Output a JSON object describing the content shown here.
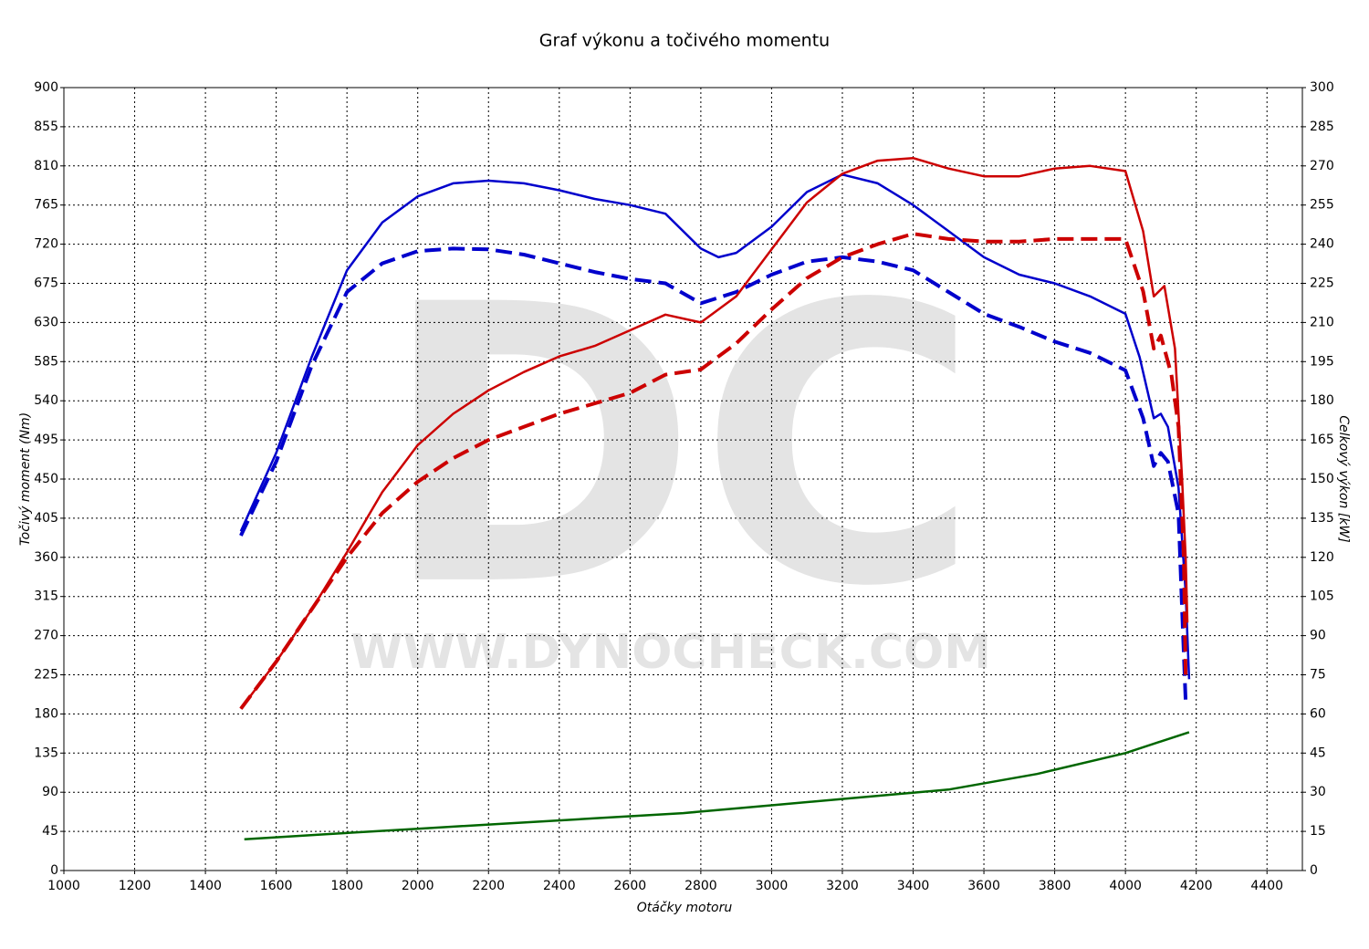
{
  "chart_data": {
    "type": "line",
    "title": "Graf výkonu a točivého momentu",
    "xlabel": "Otáčky motoru",
    "ylabel": "Točivý moment (Nm)",
    "y2label": "Celkový výkon [kW]",
    "watermark": [
      "DC",
      "WWW.DYNOCHECK.COM"
    ],
    "xlim": [
      1000,
      4500
    ],
    "xticks": [
      1000,
      1200,
      1400,
      1600,
      1800,
      2000,
      2200,
      2400,
      2600,
      2800,
      3000,
      3200,
      3400,
      3600,
      3800,
      4000,
      4200,
      4400
    ],
    "ylim": [
      0,
      900
    ],
    "yticks": [
      0,
      45,
      90,
      135,
      180,
      225,
      270,
      315,
      360,
      405,
      450,
      495,
      540,
      585,
      630,
      675,
      720,
      765,
      810,
      855,
      900
    ],
    "y2lim": [
      0,
      300
    ],
    "y2ticks": [
      0,
      15,
      30,
      45,
      60,
      75,
      90,
      105,
      120,
      135,
      150,
      165,
      180,
      195,
      210,
      225,
      240,
      255,
      270,
      285,
      300
    ],
    "grid": true,
    "series": [
      {
        "color": "#0000cc",
        "dash": false,
        "axis": "y",
        "x": [
          1500,
          1600,
          1700,
          1800,
          1900,
          2000,
          2100,
          2200,
          2300,
          2400,
          2500,
          2600,
          2700,
          2800,
          2850,
          2900,
          3000,
          3100,
          3200,
          3300,
          3400,
          3500,
          3600,
          3700,
          3800,
          3900,
          4000,
          4040,
          4080,
          4100,
          4120,
          4150,
          4170,
          4180
        ],
        "values": [
          390,
          480,
          590,
          690,
          745,
          775,
          790,
          793,
          790,
          782,
          772,
          765,
          755,
          715,
          705,
          710,
          740,
          780,
          800,
          790,
          765,
          735,
          705,
          685,
          675,
          660,
          640,
          590,
          520,
          525,
          510,
          440,
          320,
          220
        ]
      },
      {
        "color": "#0000cc",
        "dash": true,
        "axis": "y",
        "x": [
          1500,
          1600,
          1700,
          1800,
          1900,
          2000,
          2100,
          2200,
          2300,
          2400,
          2500,
          2600,
          2700,
          2800,
          2900,
          3000,
          3100,
          3200,
          3300,
          3400,
          3500,
          3600,
          3700,
          3800,
          3900,
          4000,
          4050,
          4080,
          4100,
          4120,
          4150,
          4160,
          4170
        ],
        "values": [
          385,
          470,
          580,
          665,
          698,
          712,
          715,
          714,
          708,
          698,
          688,
          680,
          675,
          652,
          665,
          685,
          700,
          705,
          700,
          690,
          665,
          640,
          625,
          608,
          595,
          575,
          520,
          465,
          480,
          470,
          410,
          300,
          195
        ]
      },
      {
        "color": "#cc0000",
        "dash": false,
        "axis": "y2",
        "x": [
          1500,
          1600,
          1700,
          1800,
          1900,
          2000,
          2100,
          2200,
          2300,
          2400,
          2500,
          2600,
          2700,
          2800,
          2900,
          3000,
          3100,
          3200,
          3300,
          3400,
          3500,
          3600,
          3700,
          3800,
          3900,
          4000,
          4050,
          4080,
          4110,
          4140,
          4160,
          4170,
          4175
        ],
        "values": [
          62,
          80,
          100,
          122,
          145,
          163,
          175,
          184,
          191,
          197,
          201,
          207,
          213,
          210,
          220,
          238,
          256,
          267,
          272,
          273,
          269,
          266,
          266,
          269,
          270,
          268,
          245,
          220,
          224,
          200,
          150,
          120,
          95
        ]
      },
      {
        "color": "#cc0000",
        "dash": true,
        "axis": "y2",
        "x": [
          1500,
          1600,
          1700,
          1800,
          1900,
          2000,
          2100,
          2200,
          2300,
          2400,
          2500,
          2600,
          2700,
          2800,
          2900,
          3000,
          3100,
          3200,
          3300,
          3400,
          3500,
          3600,
          3700,
          3800,
          3900,
          4000,
          4050,
          4080,
          4100,
          4130,
          4150,
          4165,
          4170
        ],
        "values": [
          62,
          80,
          100,
          120,
          137,
          149,
          158,
          165,
          170,
          175,
          179,
          183,
          190,
          192,
          202,
          215,
          227,
          235,
          240,
          244,
          242,
          241,
          241,
          242,
          242,
          242,
          222,
          200,
          205,
          190,
          170,
          120,
          75
        ]
      },
      {
        "color": "#006600",
        "dash": false,
        "axis": "y2",
        "x": [
          1510,
          1750,
          2000,
          2250,
          2500,
          2750,
          3000,
          3250,
          3500,
          3750,
          4000,
          4180
        ],
        "values": [
          12,
          14,
          16,
          18,
          20,
          22,
          25,
          28,
          31,
          37,
          45,
          53
        ]
      }
    ]
  }
}
